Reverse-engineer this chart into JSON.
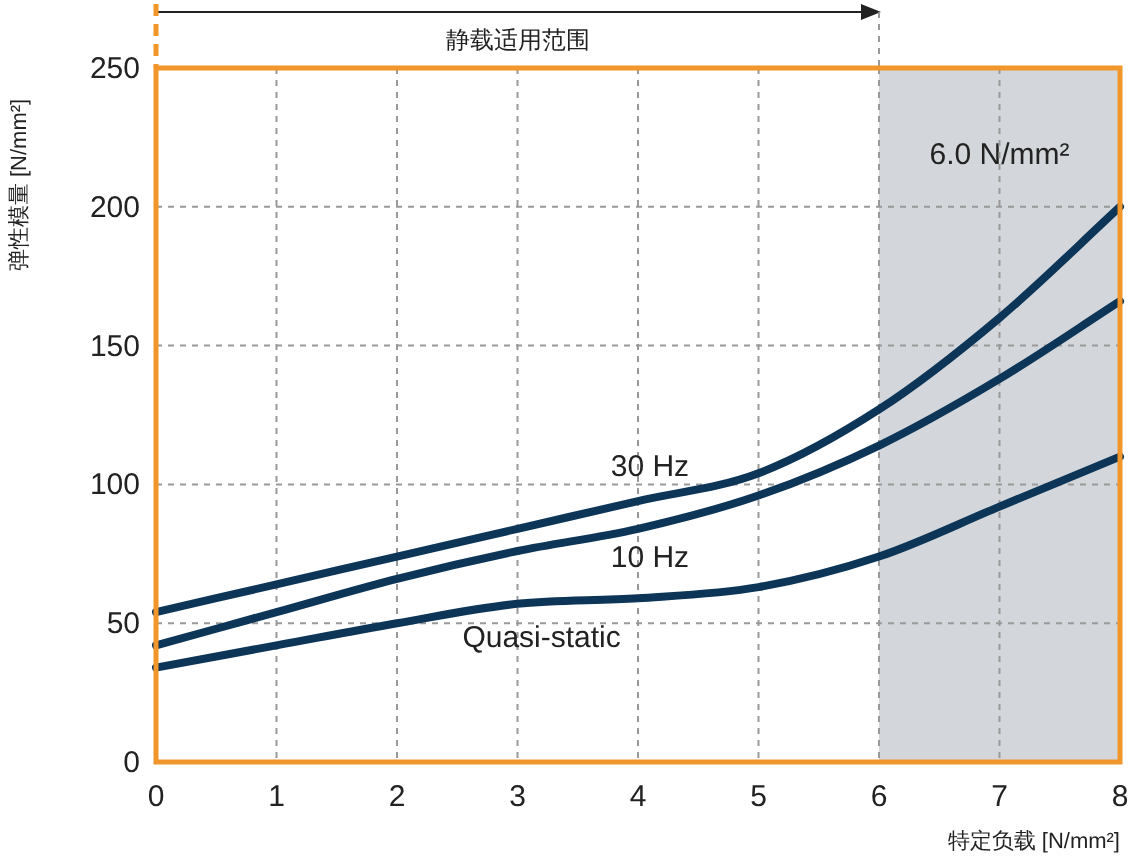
{
  "chart_data": {
    "type": "line",
    "xlabel": "特定负载 [N/mm²]",
    "ylabel": "弹性模量 [N/mm²]",
    "x": [
      0,
      1,
      2,
      3,
      4,
      5,
      6,
      7,
      8
    ],
    "xlim": [
      0,
      8
    ],
    "xticks": [
      0,
      1,
      2,
      3,
      4,
      5,
      6,
      7,
      8
    ],
    "ylim": [
      0,
      250
    ],
    "yticks": [
      0,
      50,
      100,
      150,
      200,
      250
    ],
    "grid": true,
    "marker": "none",
    "line_style": "solid",
    "series": [
      {
        "name": "30 Hz",
        "color": "#0d3557",
        "values": [
          54,
          64,
          74,
          84,
          94,
          104,
          127,
          160,
          200
        ]
      },
      {
        "name": "10 Hz",
        "color": "#0d3557",
        "values": [
          42,
          54,
          66,
          76,
          84,
          96,
          114,
          138,
          166
        ]
      },
      {
        "name": "Quasi-static",
        "color": "#0d3557",
        "values": [
          34,
          42,
          50,
          57,
          59,
          63,
          74,
          92,
          110
        ]
      }
    ],
    "bands": [
      {
        "axis": "x",
        "from": 6,
        "to": 8,
        "label": "6.0 N/mm²",
        "color": "#d3d7db"
      }
    ],
    "annotations": [
      "静载适用范围"
    ]
  }
}
